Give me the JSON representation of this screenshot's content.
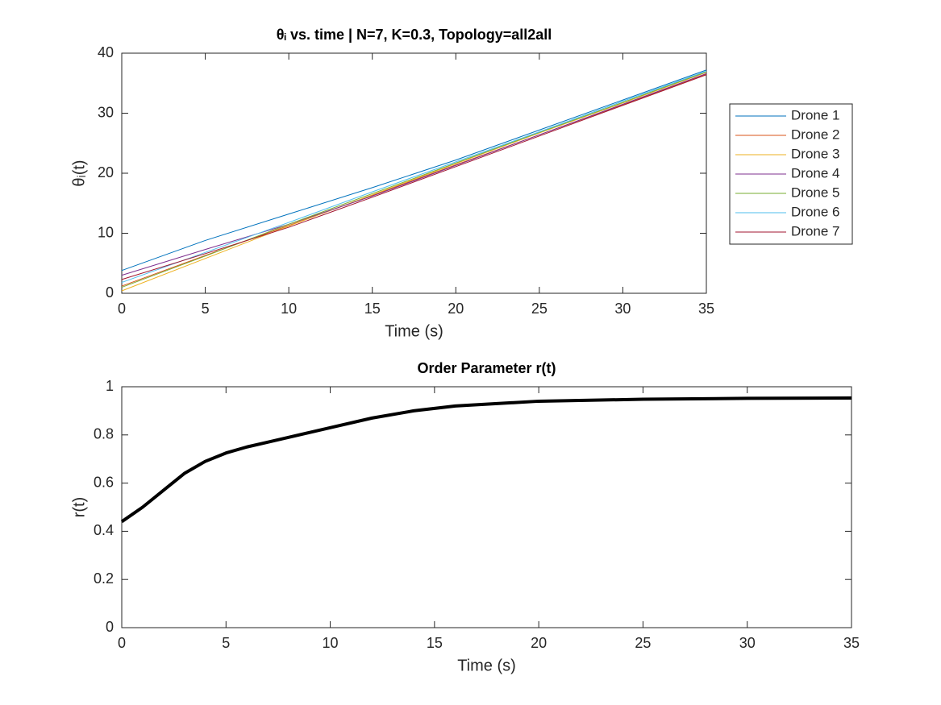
{
  "chart_data": [
    {
      "type": "line",
      "title": "θᵢ vs. time | N=7, K=0.3, Topology=all2all",
      "x_label": "Time (s)",
      "y_label": "θᵢ(t)",
      "x": [
        0,
        5,
        10,
        15,
        20,
        25,
        30,
        35
      ],
      "series": [
        {
          "name": "Drone 1",
          "color": "#0072BD",
          "values": [
            3.8,
            8.8,
            13.2,
            17.6,
            22.2,
            27.2,
            32.2,
            37.2
          ]
        },
        {
          "name": "Drone 2",
          "color": "#D95319",
          "values": [
            1.2,
            6.3,
            11.3,
            16.3,
            21.4,
            26.4,
            31.4,
            36.5
          ]
        },
        {
          "name": "Drone 3",
          "color": "#EDB120",
          "values": [
            0.4,
            5.8,
            11.2,
            16.4,
            21.6,
            26.7,
            31.7,
            36.8
          ]
        },
        {
          "name": "Drone 4",
          "color": "#7E2F8E",
          "values": [
            3.0,
            7.3,
            11.5,
            16.2,
            21.3,
            26.4,
            31.5,
            36.6
          ]
        },
        {
          "name": "Drone 5",
          "color": "#77AC30",
          "values": [
            1.0,
            6.2,
            11.5,
            16.6,
            21.7,
            26.8,
            31.8,
            36.9
          ]
        },
        {
          "name": "Drone 6",
          "color": "#4DBEEE",
          "values": [
            1.8,
            6.8,
            11.8,
            16.9,
            21.9,
            26.9,
            32.0,
            37.0
          ]
        },
        {
          "name": "Drone 7",
          "color": "#A2142F",
          "values": [
            2.3,
            6.6,
            11.0,
            16.0,
            21.1,
            26.2,
            31.3,
            36.4
          ]
        }
      ],
      "xlim": [
        0,
        35
      ],
      "xticks": [
        0,
        5,
        10,
        15,
        20,
        25,
        30,
        35
      ],
      "ylim": [
        0,
        40
      ],
      "yticks": [
        0,
        10,
        20,
        30,
        40
      ],
      "legend": "outside-right"
    },
    {
      "type": "line",
      "title": "Order Parameter r(t)",
      "x_label": "Time (s)",
      "y_label": "r(t)",
      "x": [
        0,
        1,
        2,
        3,
        4,
        5,
        6,
        7,
        8,
        9,
        10,
        12,
        14,
        16,
        18,
        20,
        25,
        30,
        35
      ],
      "series": [
        {
          "color": "#000000",
          "values": [
            0.44,
            0.5,
            0.57,
            0.64,
            0.69,
            0.725,
            0.75,
            0.77,
            0.79,
            0.81,
            0.83,
            0.87,
            0.9,
            0.92,
            0.93,
            0.94,
            0.948,
            0.952,
            0.953
          ]
        }
      ],
      "xlim": [
        0,
        35
      ],
      "xticks": [
        0,
        5,
        10,
        15,
        20,
        25,
        30,
        35
      ],
      "ylim": [
        0,
        1
      ],
      "yticks": [
        0,
        0.2,
        0.4,
        0.6,
        0.8,
        1
      ]
    }
  ]
}
